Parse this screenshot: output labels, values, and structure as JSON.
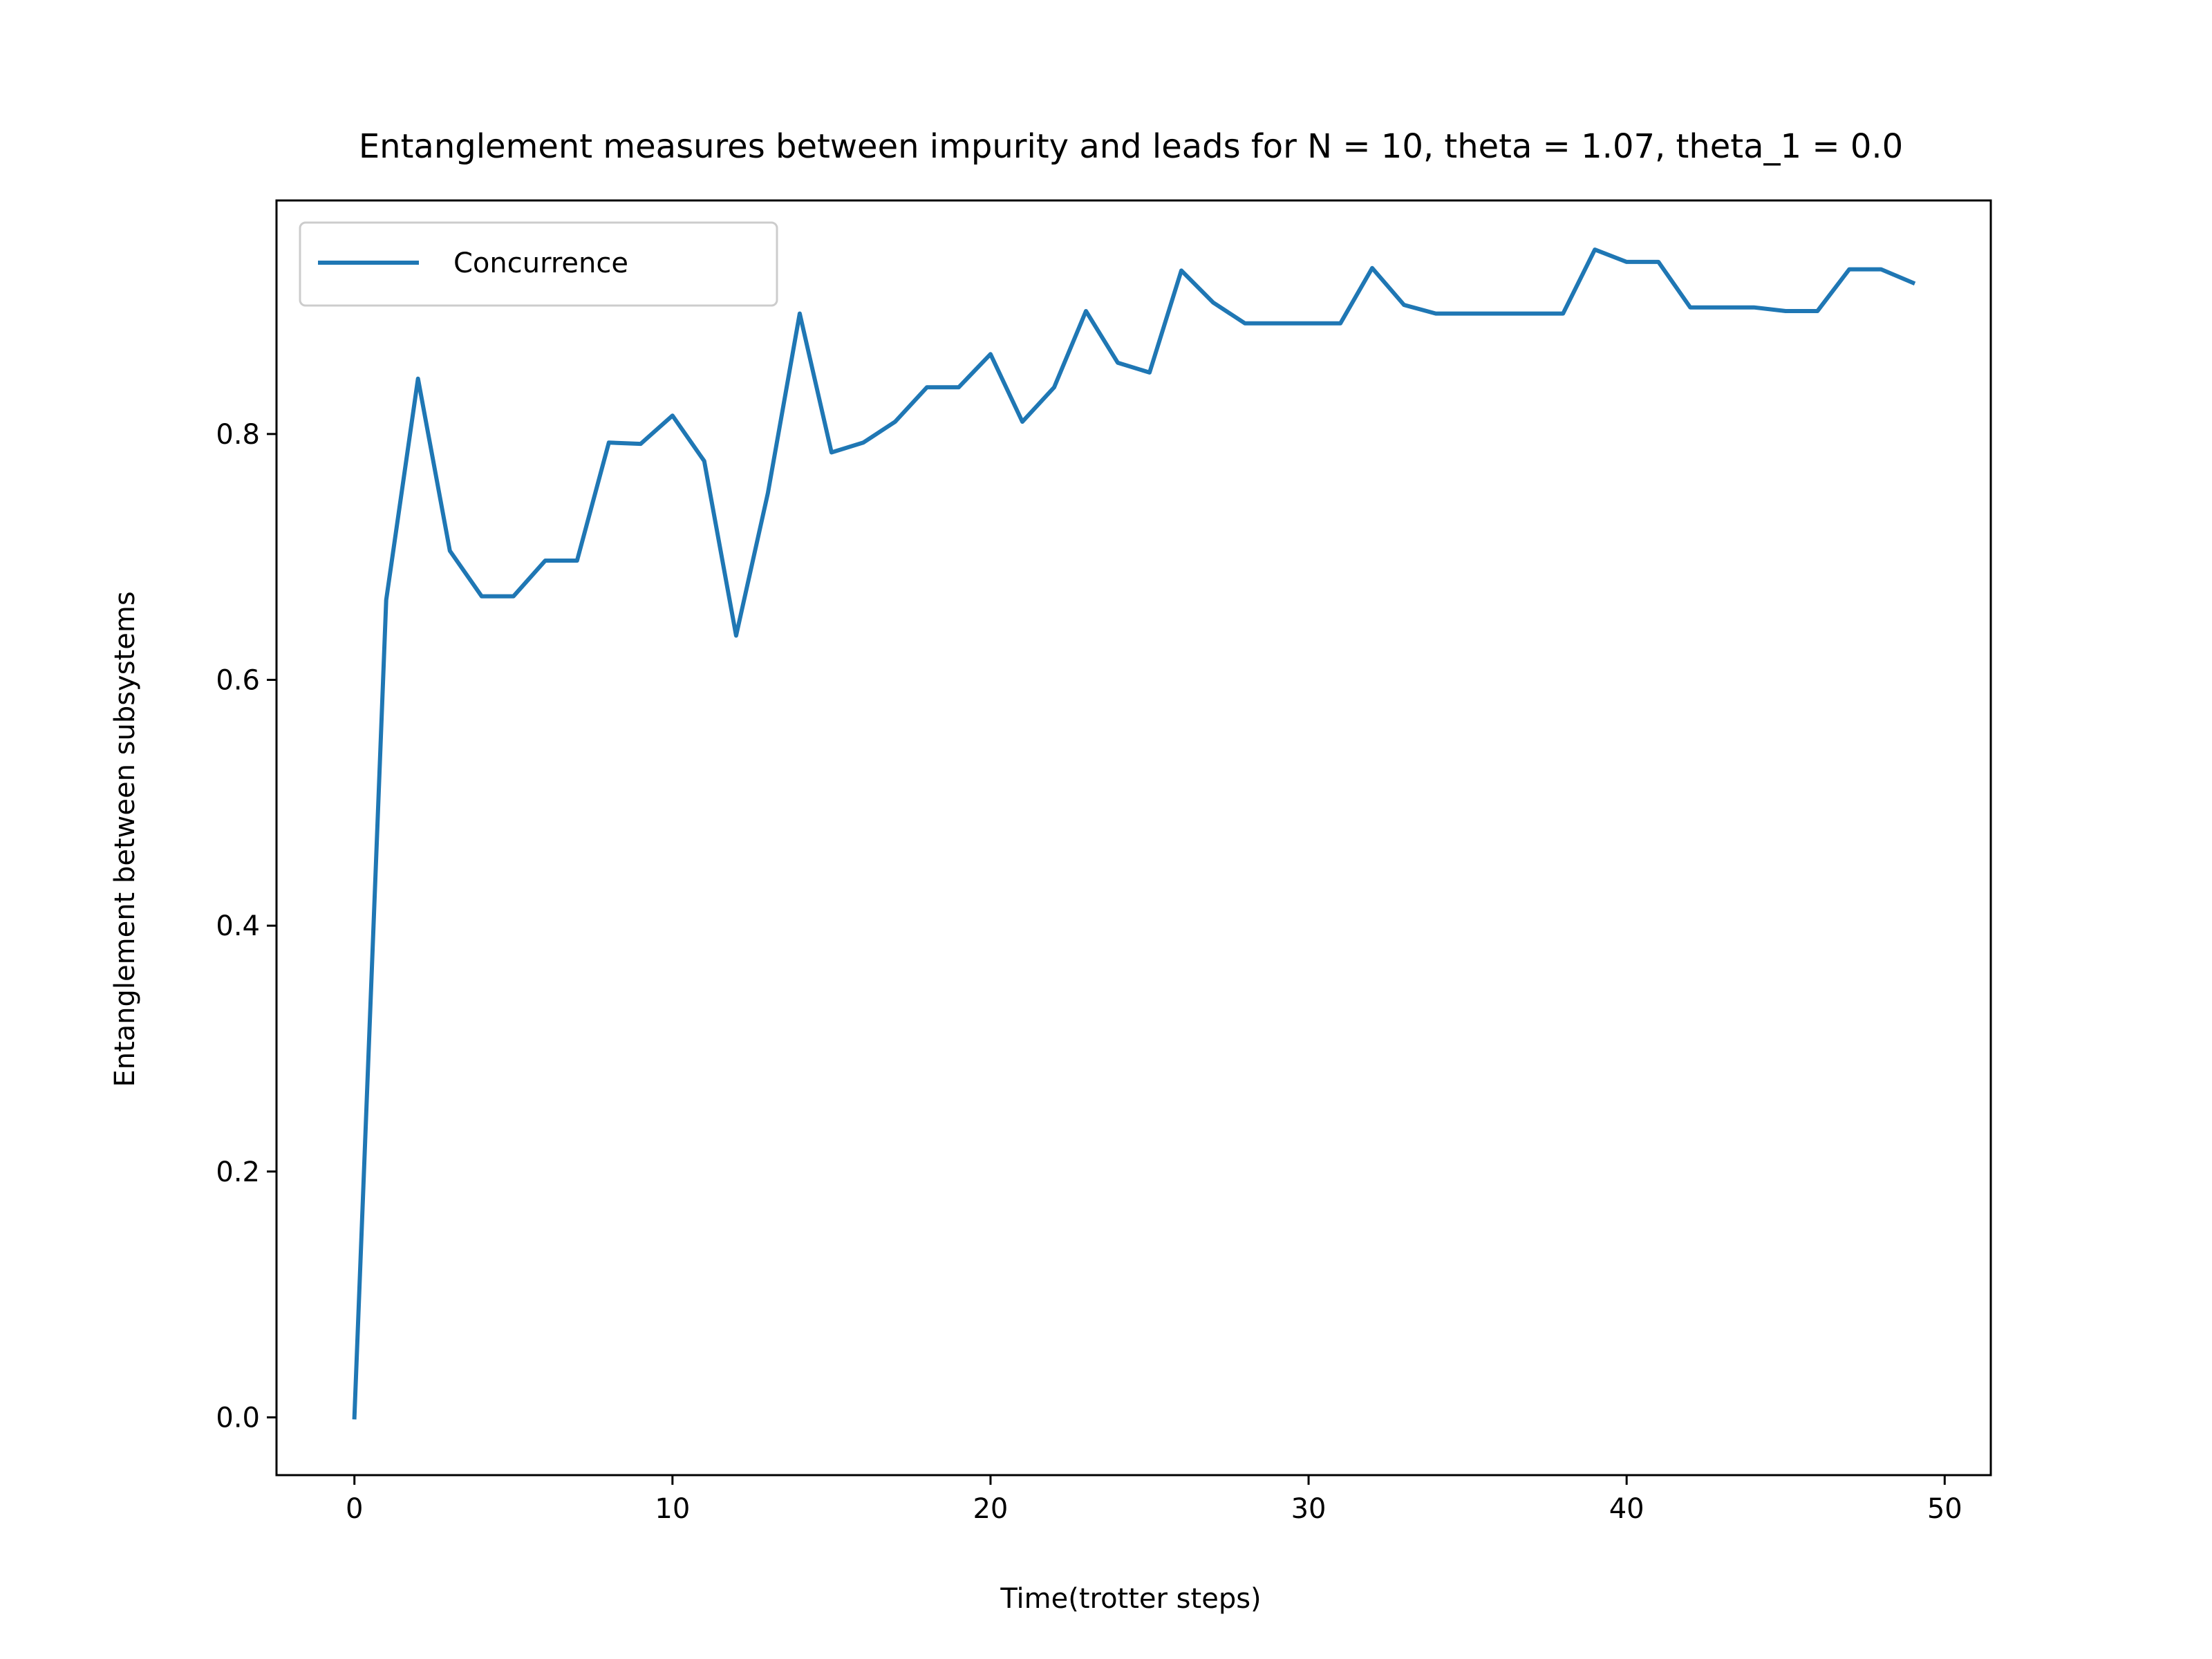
{
  "chart_data": {
    "type": "line",
    "title": "Entanglement measures between impurity and leads for N = 10, theta = 1.07, theta_1 = 0.0",
    "xlabel": "Time(trotter steps)",
    "ylabel": "Entanglement between subsystems",
    "xlim": [
      -2.45,
      51.45
    ],
    "ylim": [
      -0.047,
      0.99
    ],
    "xticks": [
      0,
      10,
      20,
      30,
      40,
      50
    ],
    "xtick_labels": [
      "0",
      "10",
      "20",
      "30",
      "40",
      "50"
    ],
    "yticks": [
      0.0,
      0.2,
      0.4,
      0.6,
      0.8
    ],
    "ytick_labels": [
      "0.0",
      "0.2",
      "0.4",
      "0.6",
      "0.8"
    ],
    "grid": false,
    "legend_position": "upper left",
    "x": [
      0,
      1,
      2,
      3,
      4,
      5,
      6,
      7,
      8,
      9,
      10,
      11,
      12,
      13,
      14,
      15,
      16,
      17,
      18,
      19,
      20,
      21,
      22,
      23,
      24,
      25,
      26,
      27,
      28,
      29,
      30,
      31,
      32,
      33,
      34,
      35,
      36,
      37,
      38,
      39,
      40,
      41,
      42,
      43,
      44,
      45,
      46,
      47,
      48,
      49
    ],
    "series": [
      {
        "name": "Concurrence",
        "color": "#1f77b4",
        "values": [
          0.0,
          0.665,
          0.845,
          0.705,
          0.668,
          0.668,
          0.697,
          0.697,
          0.793,
          0.792,
          0.815,
          0.778,
          0.636,
          0.752,
          0.898,
          0.785,
          0.793,
          0.81,
          0.838,
          0.838,
          0.865,
          0.81,
          0.838,
          0.9,
          0.858,
          0.85,
          0.933,
          0.907,
          0.89,
          0.89,
          0.89,
          0.89,
          0.935,
          0.905,
          0.898,
          0.898,
          0.898,
          0.898,
          0.898,
          0.95,
          0.94,
          0.94,
          0.903,
          0.903,
          0.903,
          0.9,
          0.9,
          0.934,
          0.934,
          0.923
        ]
      }
    ]
  }
}
